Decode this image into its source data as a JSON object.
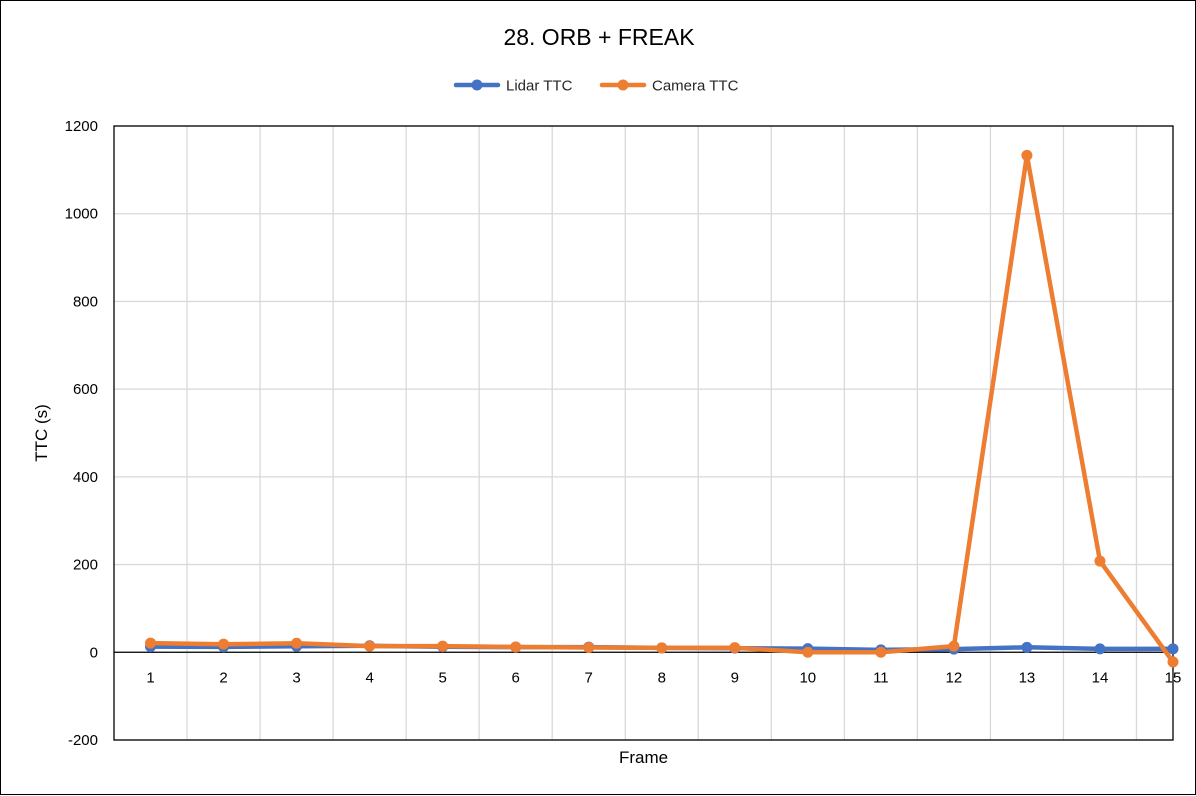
{
  "chart_data": {
    "type": "line",
    "title": "28. ORB + FREAK",
    "xlabel": "Frame",
    "ylabel": "TTC (s)",
    "categories": [
      "1",
      "2",
      "3",
      "4",
      "5",
      "6",
      "7",
      "8",
      "9",
      "10",
      "11",
      "12",
      "13",
      "14",
      "15"
    ],
    "ylim": [
      -200,
      1200
    ],
    "yticks": [
      -200,
      0,
      200,
      400,
      600,
      800,
      1000,
      1200
    ],
    "grid": true,
    "legend_position": "top",
    "series": [
      {
        "name": "Lidar TTC",
        "color": "#4472C4",
        "values": [
          12.9,
          12.3,
          13.9,
          14.9,
          12.7,
          11.9,
          11.9,
          9.9,
          9.4,
          8.3,
          5.4,
          7.2,
          11.3,
          7.8,
          7.9
        ]
      },
      {
        "name": "Camera TTC",
        "color": "#ED7D31",
        "values": [
          21.0,
          18.5,
          20.5,
          14.0,
          14.0,
          12.0,
          11.0,
          10.0,
          10.5,
          0.0,
          0.0,
          14.0,
          1133.0,
          208.0,
          -22.0
        ]
      }
    ]
  }
}
